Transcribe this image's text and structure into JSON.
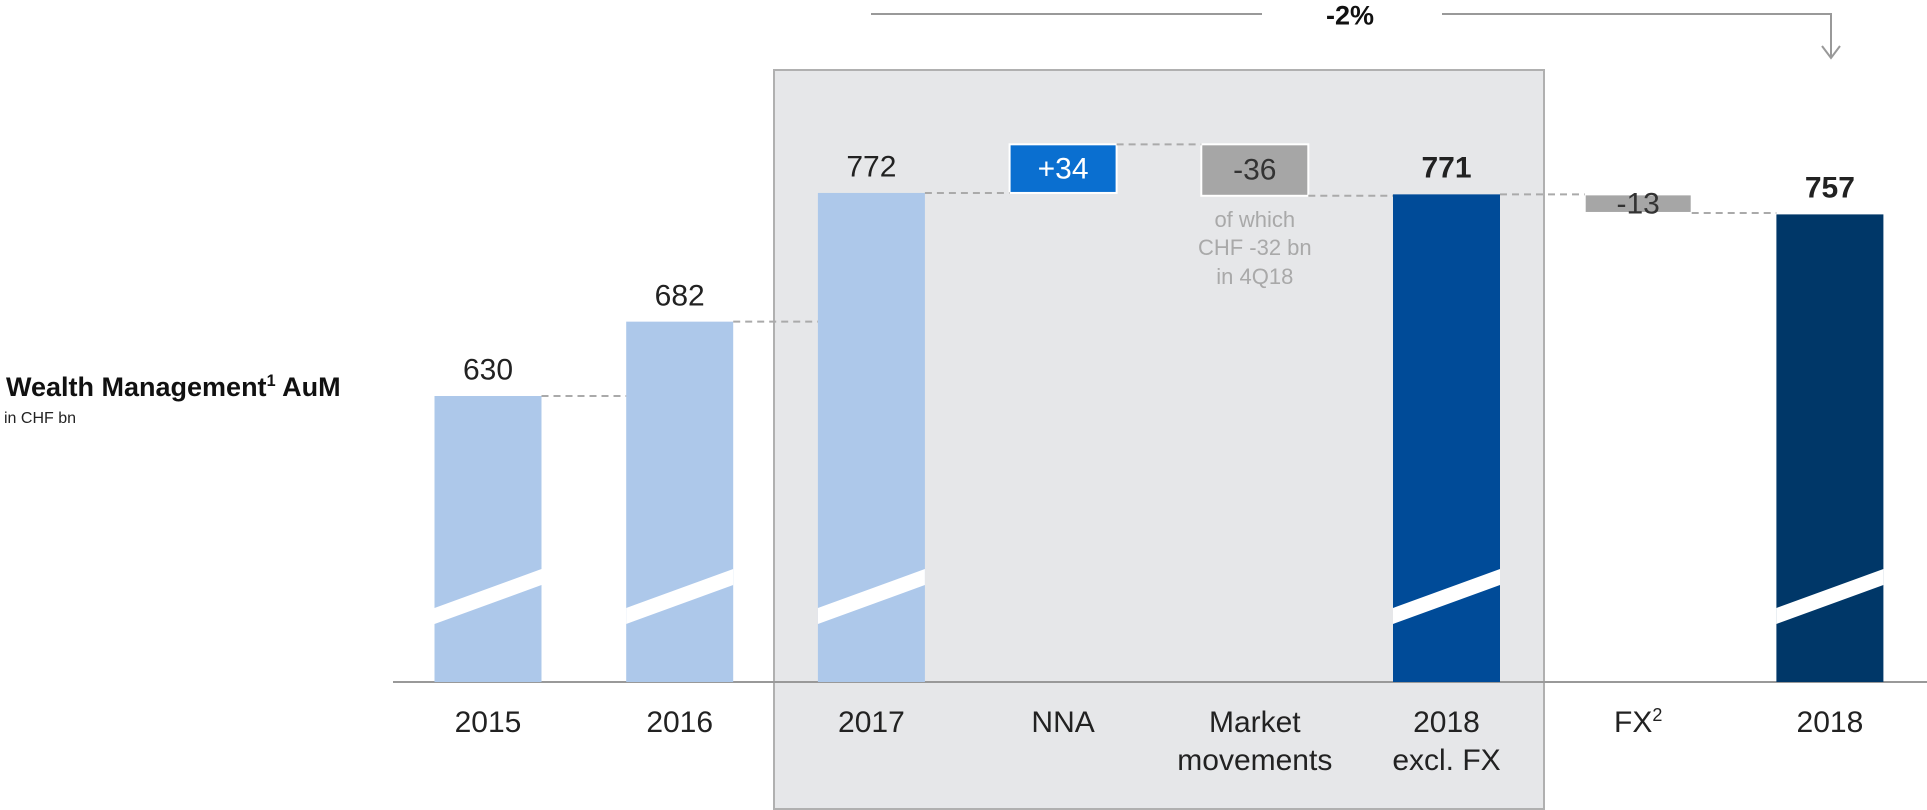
{
  "chart_data": {
    "type": "waterfall",
    "title": "Wealth Management",
    "title_footnote": "1",
    "title_suffix": "AuM",
    "subtitle": "in CHF bn",
    "annotation": "-2%",
    "note": "of which\nCHF -32 bn\nin 4Q18",
    "categories": [
      "2015",
      "2016",
      "2017",
      "NNA",
      "Market\nmovements",
      "2018\nexcl. FX",
      "FX",
      "2018"
    ],
    "fx_footnote": "2",
    "values": [
      630,
      682,
      772,
      34,
      -36,
      771,
      -13,
      757
    ],
    "value_labels": [
      "630",
      "682",
      "772",
      "+34",
      "-36",
      "771",
      "-13",
      "757"
    ],
    "kinds": [
      "total",
      "total",
      "total",
      "delta",
      "delta",
      "total",
      "delta",
      "total"
    ],
    "colors": [
      "#adc8ea",
      "#adc8ea",
      "#adc8ea",
      "#0a6fd0",
      "#a6a6a6",
      "#004b98",
      "#a6a6a6",
      "#003768"
    ],
    "ylim": [
      430,
      830
    ]
  }
}
